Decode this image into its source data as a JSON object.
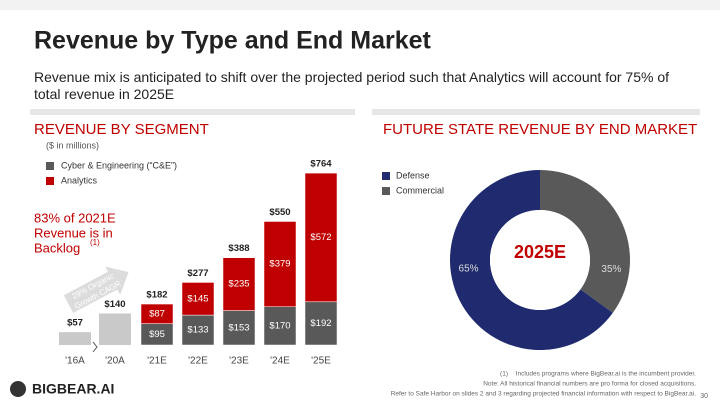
{
  "title": "Revenue by Type and End Market",
  "subtitle": "Revenue mix is anticipated to shift over the projected period such that Analytics will account for 75% of total revenue in 2025E",
  "chart_data": [
    {
      "type": "bar",
      "title": "REVENUE BY SEGMENT",
      "subtitle": "($ in millions)",
      "categories": [
        "'16A",
        "'20A",
        "'21E",
        "'22E",
        "'23E",
        "'24E",
        "'25E"
      ],
      "series": [
        {
          "name": "Cyber & Engineering (“C&E”)",
          "color": "#595959",
          "values": [
            null,
            null,
            95,
            133,
            153,
            170,
            192
          ],
          "value_labels": [
            null,
            null,
            "$95",
            "$133",
            "$153",
            "$170",
            "$192"
          ]
        },
        {
          "name": "Analytics",
          "color": "#c00000",
          "values": [
            null,
            null,
            87,
            145,
            235,
            379,
            572
          ],
          "value_labels": [
            null,
            null,
            "$87",
            "$145",
            "$235",
            "$379",
            "$572"
          ]
        }
      ],
      "totals": {
        "color": "#c9c9c9",
        "values": [
          57,
          140,
          182,
          277,
          388,
          550,
          764
        ],
        "value_labels": [
          "$57",
          "$140",
          "$182",
          "$277",
          "$388",
          "$550",
          "$764"
        ]
      },
      "annotation": {
        "lines": [
          "83% of 2021E",
          "Revenue is in",
          "Backlog"
        ],
        "marker": "(1)"
      },
      "arrow_label": [
        "29% Organic",
        "Growth CAGR"
      ]
    },
    {
      "type": "pie",
      "title": "FUTURE STATE REVENUE BY END MARKET",
      "categories": [
        "Defense",
        "Commercial"
      ],
      "values": [
        65,
        35
      ],
      "value_labels": [
        "65%",
        "35%"
      ],
      "colors": [
        "#1f2b6e",
        "#595959"
      ],
      "center_label": "2025E"
    }
  ],
  "footnotes": [
    {
      "marker": "(1)",
      "text": "Includes programs where BigBear.ai is the incumbent provider."
    },
    {
      "text": "Note: All historical financial numbers are pro forma for closed acquisitions."
    },
    {
      "text": "Refer to Safe Harbor on slides 2 and 3 regarding projected financial information with respect to BigBear.ai."
    }
  ],
  "logo": "BIGBEAR.AI",
  "page_number": "30"
}
